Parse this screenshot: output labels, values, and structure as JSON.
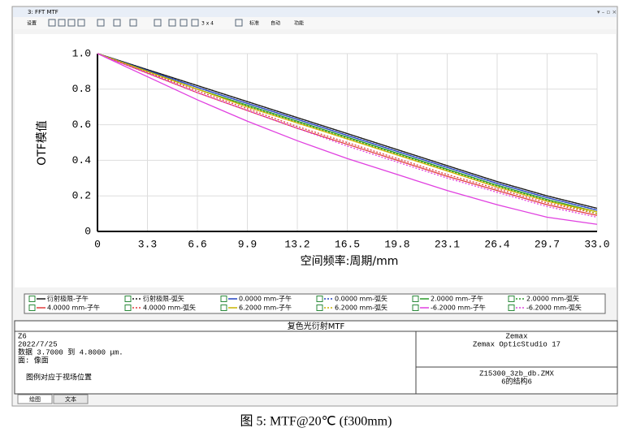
{
  "window": {
    "title": "3: FFT MTF",
    "toolbar": [
      "设置",
      "3 x 4",
      "标准",
      "自动",
      "功能"
    ]
  },
  "chart_data": {
    "type": "line",
    "y_label": "OTF模值",
    "x_label": "空间频率:周期/mm",
    "x": [
      0,
      3.3,
      6.6,
      9.9,
      13.2,
      16.5,
      19.8,
      23.1,
      26.4,
      29.7,
      33
    ],
    "xlim": [
      0,
      33
    ],
    "xticks": [
      0,
      3.3,
      6.6,
      9.9,
      13.2,
      16.5,
      19.8,
      23.1,
      26.4,
      29.7,
      {
        "value": 33,
        "label": "33.0"
      }
    ],
    "ylim": [
      0,
      1
    ],
    "yticks": [
      0,
      0.2,
      0.4,
      0.6,
      0.8,
      {
        "value": 1,
        "label": "1.0"
      }
    ],
    "grid": true,
    "series": [
      {
        "name": "衍射极限-子午",
        "color": "#1a1a1a",
        "style": "solid",
        "values": [
          1,
          0.91,
          0.82,
          0.73,
          0.64,
          0.55,
          0.46,
          0.37,
          0.28,
          0.2,
          0.13
        ]
      },
      {
        "name": "衍射极限-弧矢",
        "color": "#1a1a1a",
        "style": "dotted",
        "values": [
          1,
          0.91,
          0.82,
          0.73,
          0.64,
          0.55,
          0.46,
          0.37,
          0.28,
          0.2,
          0.13
        ]
      },
      {
        "name": "0.0000 mm-子午",
        "color": "#2343c0",
        "style": "solid",
        "values": [
          1,
          0.905,
          0.81,
          0.72,
          0.63,
          0.54,
          0.45,
          0.36,
          0.27,
          0.19,
          0.12
        ]
      },
      {
        "name": "0.0000 mm-弧矢",
        "color": "#2343c0",
        "style": "dotted",
        "values": [
          1,
          0.905,
          0.81,
          0.72,
          0.63,
          0.54,
          0.45,
          0.36,
          0.27,
          0.19,
          0.12
        ]
      },
      {
        "name": "2.0000 mm-子午",
        "color": "#2a9a2a",
        "style": "solid",
        "values": [
          1,
          0.9,
          0.8,
          0.71,
          0.62,
          0.53,
          0.44,
          0.35,
          0.26,
          0.18,
          0.11
        ]
      },
      {
        "name": "2.0000 mm-弧矢",
        "color": "#2a9a2a",
        "style": "dotted",
        "values": [
          1,
          0.9,
          0.8,
          0.705,
          0.615,
          0.525,
          0.435,
          0.345,
          0.255,
          0.175,
          0.1
        ]
      },
      {
        "name": "4.0000 mm-子午",
        "color": "#e03c3c",
        "style": "solid",
        "values": [
          1,
          0.89,
          0.78,
          0.68,
          0.58,
          0.49,
          0.4,
          0.31,
          0.23,
          0.15,
          0.09
        ]
      },
      {
        "name": "4.0000 mm-弧矢",
        "color": "#e03c3c",
        "style": "dotted",
        "values": [
          1,
          0.895,
          0.79,
          0.69,
          0.59,
          0.5,
          0.41,
          0.32,
          0.24,
          0.16,
          0.1
        ]
      },
      {
        "name": "6.2000 mm-子午",
        "color": "#c8b400",
        "style": "solid",
        "values": [
          1,
          0.9,
          0.8,
          0.7,
          0.61,
          0.52,
          0.43,
          0.34,
          0.25,
          0.17,
          0.11
        ]
      },
      {
        "name": "6.2000 mm-弧矢",
        "color": "#c8b400",
        "style": "dotted",
        "values": [
          1,
          0.9,
          0.8,
          0.7,
          0.61,
          0.52,
          0.43,
          0.34,
          0.25,
          0.17,
          0.1
        ]
      },
      {
        "name": "-6.2000 mm-子午",
        "color": "#e040e0",
        "style": "solid",
        "values": [
          1,
          0.87,
          0.74,
          0.62,
          0.51,
          0.41,
          0.32,
          0.23,
          0.15,
          0.08,
          0.04
        ]
      },
      {
        "name": "-6.2000 mm-弧矢",
        "color": "#e040e0",
        "style": "dotted",
        "values": [
          1,
          0.89,
          0.78,
          0.68,
          0.58,
          0.48,
          0.39,
          0.3,
          0.22,
          0.14,
          0.08
        ]
      }
    ]
  },
  "info": {
    "title": "复色光衍射MTF",
    "left": [
      "Z6",
      "2022/7/25",
      "数据 3.7000 到 4.8000 μm.",
      "面: 像面"
    ],
    "note": "图例对应于视场位置",
    "right_top": [
      "Zemax",
      "Zemax OpticStudio 17"
    ],
    "right_bottom": [
      "Z15300_3zb_db.ZMX",
      "6的结构6"
    ]
  },
  "tabs": [
    "绘图",
    "文本"
  ],
  "caption": "图 5: MTF@20℃ (f300mm)"
}
